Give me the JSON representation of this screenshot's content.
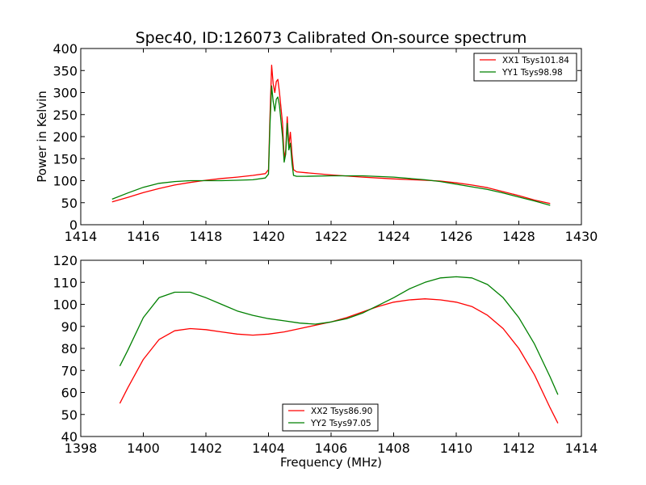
{
  "chart_data": [
    {
      "type": "line",
      "title": "Spec40, ID:126073 Calibrated On-source spectrum",
      "xlabel": "",
      "ylabel": "Power in Kelvin",
      "xlim": [
        1414,
        1430
      ],
      "ylim": [
        0,
        400
      ],
      "xticks": [
        1414,
        1416,
        1418,
        1420,
        1422,
        1424,
        1426,
        1428,
        1430
      ],
      "yticks": [
        0,
        50,
        100,
        150,
        200,
        250,
        300,
        350,
        400
      ],
      "grid": false,
      "legend_position": "top-right",
      "series": [
        {
          "name": "XX1 Tsys101.84",
          "color": "#ff0000",
          "points": [
            [
              1415.0,
              52
            ],
            [
              1415.5,
              62
            ],
            [
              1416.0,
              73
            ],
            [
              1416.5,
              82
            ],
            [
              1417.0,
              90
            ],
            [
              1417.5,
              96
            ],
            [
              1418.0,
              101
            ],
            [
              1418.5,
              105
            ],
            [
              1419.0,
              108
            ],
            [
              1419.5,
              112
            ],
            [
              1419.9,
              116
            ],
            [
              1420.0,
              125
            ],
            [
              1420.05,
              250
            ],
            [
              1420.1,
              362
            ],
            [
              1420.15,
              320
            ],
            [
              1420.2,
              300
            ],
            [
              1420.25,
              325
            ],
            [
              1420.3,
              330
            ],
            [
              1420.35,
              300
            ],
            [
              1420.45,
              230
            ],
            [
              1420.5,
              150
            ],
            [
              1420.55,
              170
            ],
            [
              1420.6,
              245
            ],
            [
              1420.65,
              180
            ],
            [
              1420.7,
              210
            ],
            [
              1420.75,
              160
            ],
            [
              1420.8,
              125
            ],
            [
              1420.9,
              120
            ],
            [
              1421.2,
              118
            ],
            [
              1422.0,
              113
            ],
            [
              1423.0,
              108
            ],
            [
              1424.0,
              104
            ],
            [
              1425.0,
              101
            ],
            [
              1425.5,
              99
            ],
            [
              1426.0,
              95
            ],
            [
              1426.5,
              90
            ],
            [
              1427.0,
              84
            ],
            [
              1427.5,
              75
            ],
            [
              1428.0,
              66
            ],
            [
              1428.5,
              56
            ],
            [
              1429.0,
              48
            ]
          ]
        },
        {
          "name": "YY1 Tsys98.98",
          "color": "#008000",
          "points": [
            [
              1415.0,
              58
            ],
            [
              1415.5,
              72
            ],
            [
              1416.0,
              85
            ],
            [
              1416.5,
              94
            ],
            [
              1417.0,
              98
            ],
            [
              1417.5,
              100
            ],
            [
              1418.0,
              100
            ],
            [
              1418.5,
              100
            ],
            [
              1419.0,
              101
            ],
            [
              1419.5,
              102
            ],
            [
              1419.9,
              106
            ],
            [
              1420.0,
              115
            ],
            [
              1420.05,
              230
            ],
            [
              1420.1,
              315
            ],
            [
              1420.15,
              280
            ],
            [
              1420.2,
              258
            ],
            [
              1420.25,
              285
            ],
            [
              1420.3,
              290
            ],
            [
              1420.35,
              270
            ],
            [
              1420.45,
              200
            ],
            [
              1420.5,
              142
            ],
            [
              1420.55,
              160
            ],
            [
              1420.6,
              230
            ],
            [
              1420.65,
              170
            ],
            [
              1420.7,
              185
            ],
            [
              1420.75,
              140
            ],
            [
              1420.8,
              112
            ],
            [
              1420.9,
              110
            ],
            [
              1421.2,
              110
            ],
            [
              1422.0,
              111
            ],
            [
              1423.0,
              111
            ],
            [
              1424.0,
              108
            ],
            [
              1425.0,
              102
            ],
            [
              1425.5,
              98
            ],
            [
              1426.0,
              92
            ],
            [
              1426.5,
              86
            ],
            [
              1427.0,
              80
            ],
            [
              1427.5,
              72
            ],
            [
              1428.0,
              63
            ],
            [
              1428.5,
              54
            ],
            [
              1429.0,
              44
            ]
          ]
        }
      ]
    },
    {
      "type": "line",
      "title": "",
      "xlabel": "Frequency (MHz)",
      "ylabel": "",
      "xlim": [
        1398,
        1414
      ],
      "ylim": [
        40,
        120
      ],
      "xticks": [
        1398,
        1400,
        1402,
        1404,
        1406,
        1408,
        1410,
        1412,
        1414
      ],
      "yticks": [
        40,
        50,
        60,
        70,
        80,
        90,
        100,
        110,
        120
      ],
      "grid": false,
      "legend_position": "bottom-center",
      "series": [
        {
          "name": "XX2 Tsys86.90",
          "color": "#ff0000",
          "points": [
            [
              1399.25,
              55
            ],
            [
              1399.5,
              62
            ],
            [
              1400.0,
              75
            ],
            [
              1400.5,
              84
            ],
            [
              1401.0,
              88
            ],
            [
              1401.5,
              89
            ],
            [
              1402.0,
              88.5
            ],
            [
              1402.5,
              87.5
            ],
            [
              1403.0,
              86.5
            ],
            [
              1403.5,
              86
            ],
            [
              1404.0,
              86.5
            ],
            [
              1404.5,
              87.5
            ],
            [
              1405.0,
              89
            ],
            [
              1405.5,
              90.5
            ],
            [
              1406.0,
              92
            ],
            [
              1406.5,
              94
            ],
            [
              1407.0,
              96.5
            ],
            [
              1407.5,
              99
            ],
            [
              1408.0,
              101
            ],
            [
              1408.5,
              102
            ],
            [
              1409.0,
              102.5
            ],
            [
              1409.5,
              102
            ],
            [
              1410.0,
              101
            ],
            [
              1410.5,
              99
            ],
            [
              1411.0,
              95
            ],
            [
              1411.5,
              89
            ],
            [
              1412.0,
              80
            ],
            [
              1412.5,
              68
            ],
            [
              1413.0,
              53
            ],
            [
              1413.25,
              46
            ]
          ]
        },
        {
          "name": "YY2 Tsys97.05",
          "color": "#008000",
          "points": [
            [
              1399.25,
              72
            ],
            [
              1399.5,
              79
            ],
            [
              1400.0,
              94
            ],
            [
              1400.5,
              103
            ],
            [
              1401.0,
              105.5
            ],
            [
              1401.5,
              105.5
            ],
            [
              1402.0,
              103
            ],
            [
              1402.5,
              100
            ],
            [
              1403.0,
              97
            ],
            [
              1403.5,
              95
            ],
            [
              1404.0,
              93.5
            ],
            [
              1404.5,
              92.5
            ],
            [
              1405.0,
              91.5
            ],
            [
              1405.5,
              91
            ],
            [
              1406.0,
              92
            ],
            [
              1406.5,
              93.5
            ],
            [
              1407.0,
              96
            ],
            [
              1407.5,
              99.5
            ],
            [
              1408.0,
              103
            ],
            [
              1408.5,
              107
            ],
            [
              1409.0,
              110
            ],
            [
              1409.5,
              112
            ],
            [
              1410.0,
              112.5
            ],
            [
              1410.5,
              112
            ],
            [
              1411.0,
              109
            ],
            [
              1411.5,
              103
            ],
            [
              1412.0,
              94
            ],
            [
              1412.5,
              82
            ],
            [
              1413.0,
              67
            ],
            [
              1413.25,
              59
            ]
          ]
        }
      ]
    }
  ]
}
